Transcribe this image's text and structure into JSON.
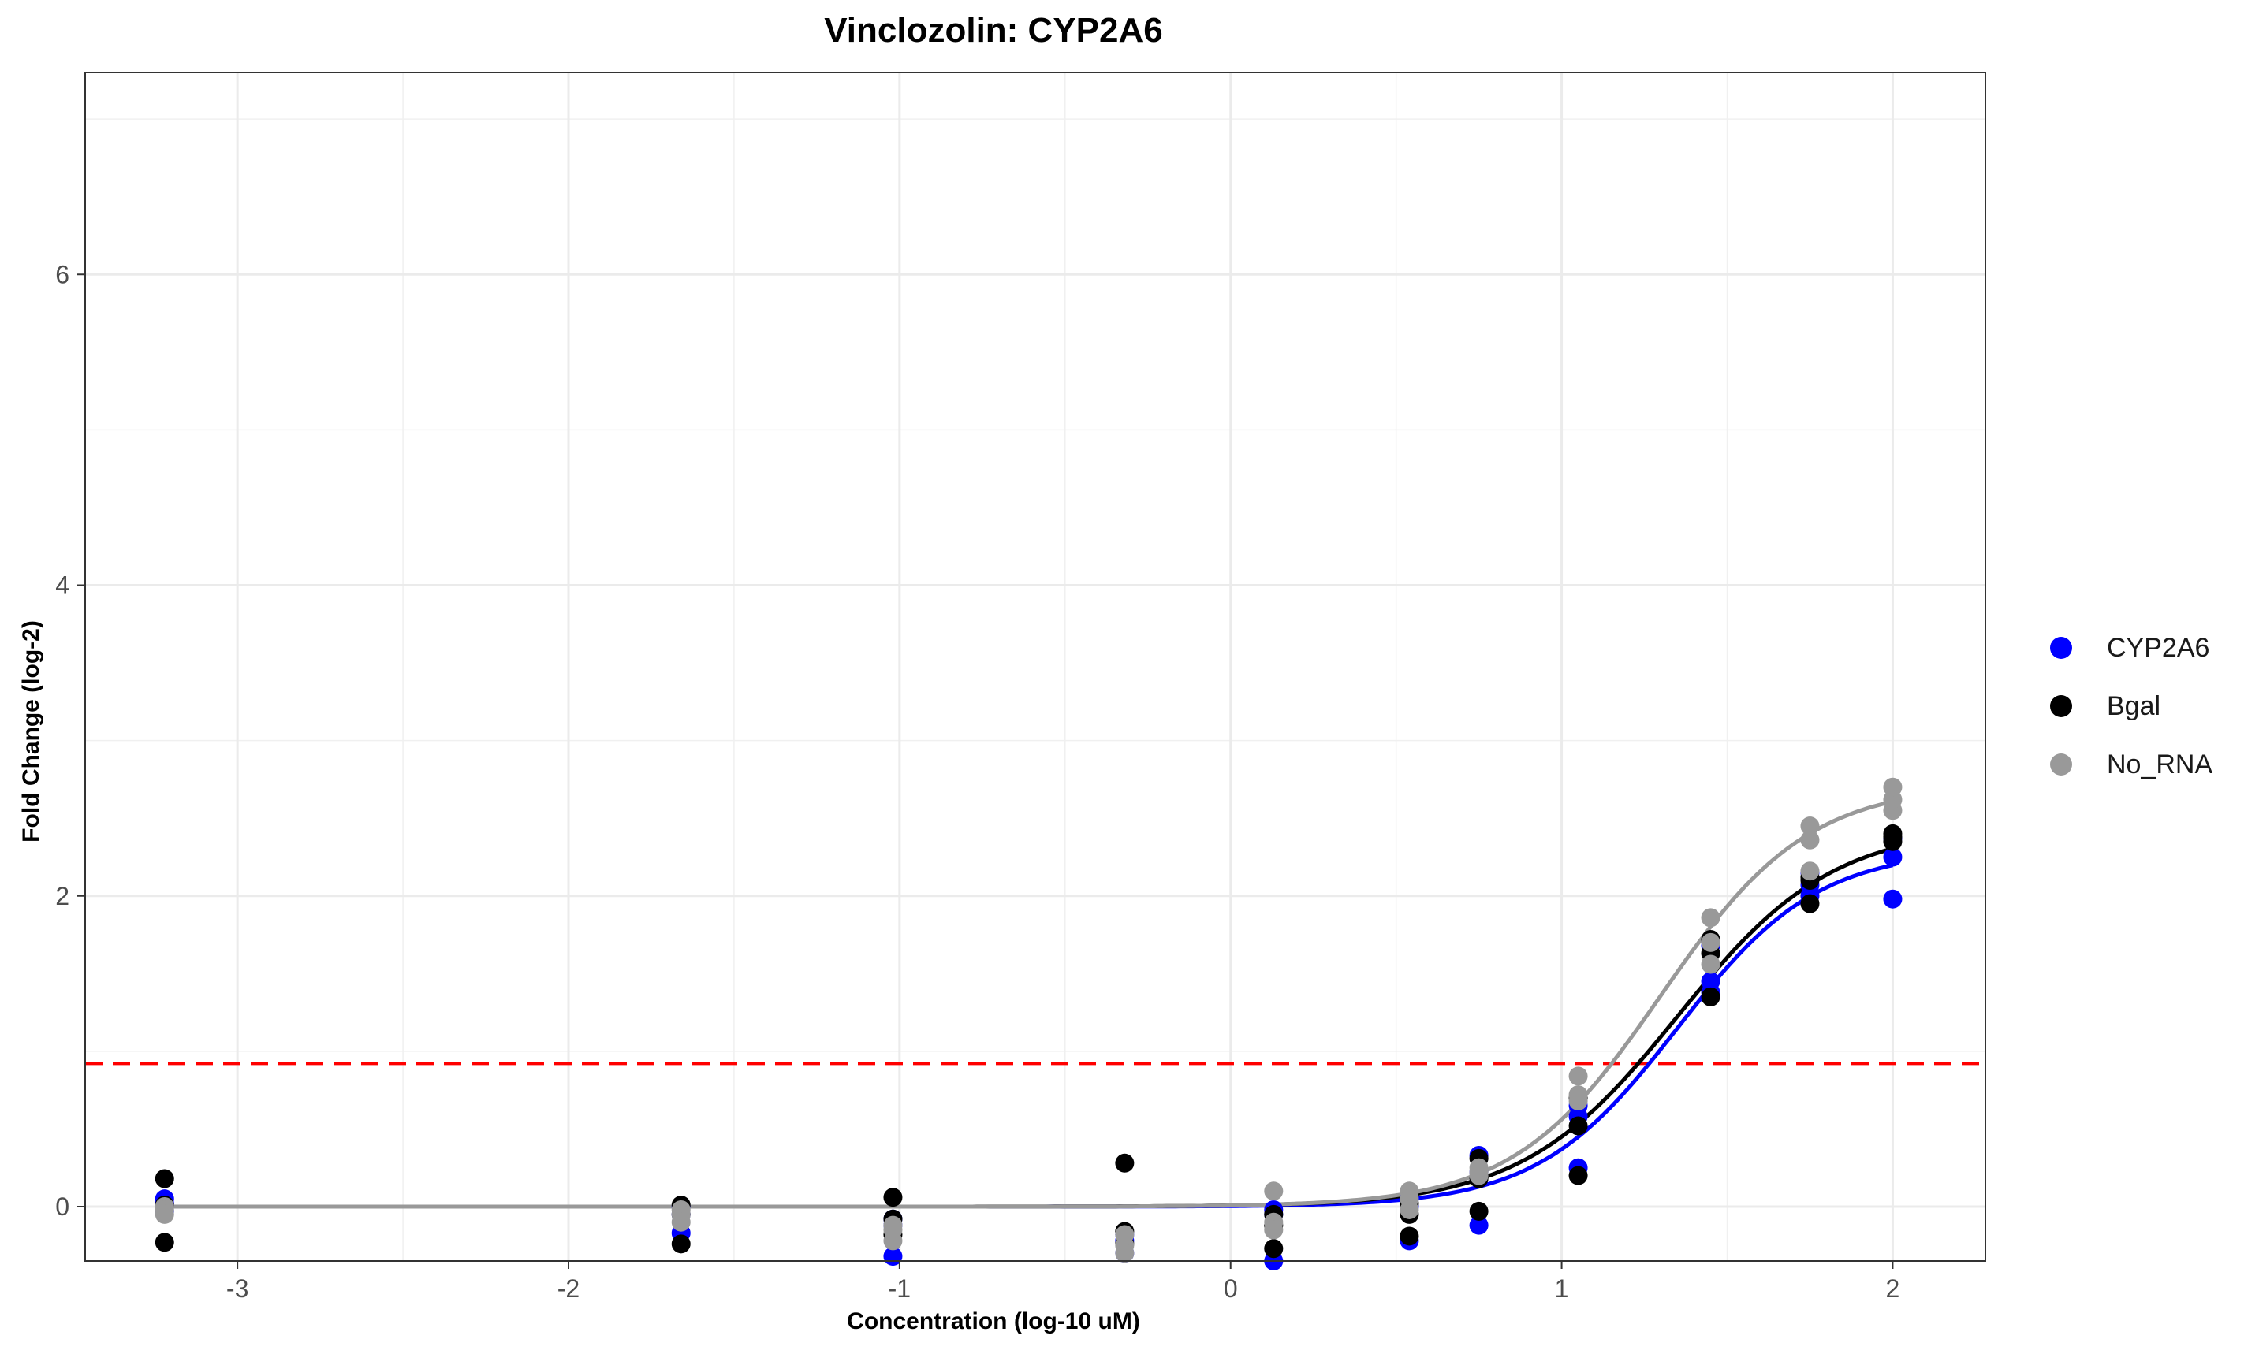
{
  "chart_data": {
    "type": "scatter",
    "title": "Vinclozolin: CYP2A6",
    "xlabel": "Concentration (log-10 uM)",
    "ylabel": "Fold Change (log-2)",
    "xlim": [
      -3.46,
      2.28
    ],
    "ylim": [
      -0.35,
      7.3
    ],
    "x_ticks": [
      -3,
      -2,
      -1,
      0,
      1,
      2
    ],
    "y_ticks": [
      0,
      2,
      4,
      6
    ],
    "x_tick_labels": [
      "-3",
      "-2",
      "-1",
      "0",
      "1",
      "2"
    ],
    "y_tick_labels": [
      "0",
      "2",
      "4",
      "6"
    ],
    "grid": true,
    "legend_position": "right",
    "threshold": {
      "y": 0.92,
      "color": "#ff0000",
      "style": "dashed"
    },
    "series": [
      {
        "name": "CYP2A6",
        "color": "#0000ff",
        "points": [
          [
            -3.22,
            0.05
          ],
          [
            -3.22,
            0.02
          ],
          [
            -3.22,
            -0.03
          ],
          [
            -1.66,
            -0.17
          ],
          [
            -1.66,
            -0.05
          ],
          [
            -1.66,
            0.0
          ],
          [
            -1.02,
            -0.32
          ],
          [
            -1.02,
            -0.12
          ],
          [
            -1.02,
            -0.08
          ],
          [
            -0.32,
            -0.3
          ],
          [
            -0.32,
            -0.22
          ],
          [
            -0.32,
            -0.18
          ],
          [
            0.13,
            -0.35
          ],
          [
            0.13,
            -0.05
          ],
          [
            0.13,
            -0.02
          ],
          [
            0.54,
            -0.22
          ],
          [
            0.54,
            0.0
          ],
          [
            0.54,
            0.05
          ],
          [
            0.75,
            -0.12
          ],
          [
            0.75,
            0.22
          ],
          [
            0.75,
            0.33
          ],
          [
            1.05,
            0.25
          ],
          [
            1.05,
            0.58
          ],
          [
            1.05,
            0.65
          ],
          [
            1.45,
            1.38
          ],
          [
            1.45,
            1.45
          ],
          [
            1.45,
            1.68
          ],
          [
            1.75,
            2.0
          ],
          [
            1.75,
            2.07
          ],
          [
            1.75,
            2.15
          ],
          [
            2.0,
            1.98
          ],
          [
            2.0,
            2.25
          ],
          [
            2.0,
            2.37
          ]
        ],
        "curve": {
          "bottom": 0,
          "top": 2.3,
          "ec50_log": 1.35,
          "hill": 2.05
        }
      },
      {
        "name": "Bgal",
        "color": "#000000",
        "points": [
          [
            -3.22,
            0.18
          ],
          [
            -3.22,
            0.01
          ],
          [
            -3.22,
            -0.23
          ],
          [
            -1.66,
            -0.24
          ],
          [
            -1.66,
            -0.05
          ],
          [
            -1.66,
            0.01
          ],
          [
            -1.02,
            0.06
          ],
          [
            -1.02,
            -0.08
          ],
          [
            -1.02,
            -0.18
          ],
          [
            -0.32,
            0.28
          ],
          [
            -0.32,
            -0.16
          ],
          [
            -0.32,
            -0.24
          ],
          [
            0.13,
            -0.27
          ],
          [
            0.13,
            -0.12
          ],
          [
            0.13,
            -0.05
          ],
          [
            0.54,
            -0.19
          ],
          [
            0.54,
            -0.05
          ],
          [
            0.54,
            0.02
          ],
          [
            0.75,
            -0.03
          ],
          [
            0.75,
            0.18
          ],
          [
            0.75,
            0.31
          ],
          [
            1.05,
            0.2
          ],
          [
            1.05,
            0.52
          ],
          [
            1.05,
            0.7
          ],
          [
            1.45,
            1.35
          ],
          [
            1.45,
            1.63
          ],
          [
            1.45,
            1.72
          ],
          [
            1.75,
            1.95
          ],
          [
            1.75,
            2.1
          ],
          [
            1.75,
            2.12
          ],
          [
            2.0,
            2.35
          ],
          [
            2.0,
            2.38
          ],
          [
            2.0,
            2.4
          ]
        ],
        "curve": {
          "bottom": 0,
          "top": 2.45,
          "ec50_log": 1.35,
          "hill": 1.85
        }
      },
      {
        "name": "No_RNA",
        "color": "#999999",
        "points": [
          [
            -3.22,
            0.0
          ],
          [
            -3.22,
            -0.02
          ],
          [
            -3.22,
            -0.05
          ],
          [
            -1.66,
            -0.02
          ],
          [
            -1.66,
            -0.05
          ],
          [
            -1.66,
            -0.1
          ],
          [
            -1.02,
            -0.12
          ],
          [
            -1.02,
            -0.15
          ],
          [
            -1.02,
            -0.22
          ],
          [
            -0.32,
            -0.18
          ],
          [
            -0.32,
            -0.25
          ],
          [
            -0.32,
            -0.3
          ],
          [
            0.13,
            0.1
          ],
          [
            0.13,
            -0.1
          ],
          [
            0.13,
            -0.15
          ],
          [
            0.54,
            0.1
          ],
          [
            0.54,
            0.05
          ],
          [
            0.54,
            -0.02
          ],
          [
            0.75,
            0.2
          ],
          [
            0.75,
            0.22
          ],
          [
            0.75,
            0.25
          ],
          [
            1.05,
            0.68
          ],
          [
            1.05,
            0.72
          ],
          [
            1.05,
            0.84
          ],
          [
            1.45,
            1.56
          ],
          [
            1.45,
            1.7
          ],
          [
            1.45,
            1.86
          ],
          [
            1.75,
            2.16
          ],
          [
            1.75,
            2.36
          ],
          [
            1.75,
            2.45
          ],
          [
            2.0,
            2.55
          ],
          [
            2.0,
            2.62
          ],
          [
            2.0,
            2.7
          ]
        ],
        "curve": {
          "bottom": 0,
          "top": 2.72,
          "ec50_log": 1.3,
          "hill": 1.95
        }
      }
    ]
  }
}
